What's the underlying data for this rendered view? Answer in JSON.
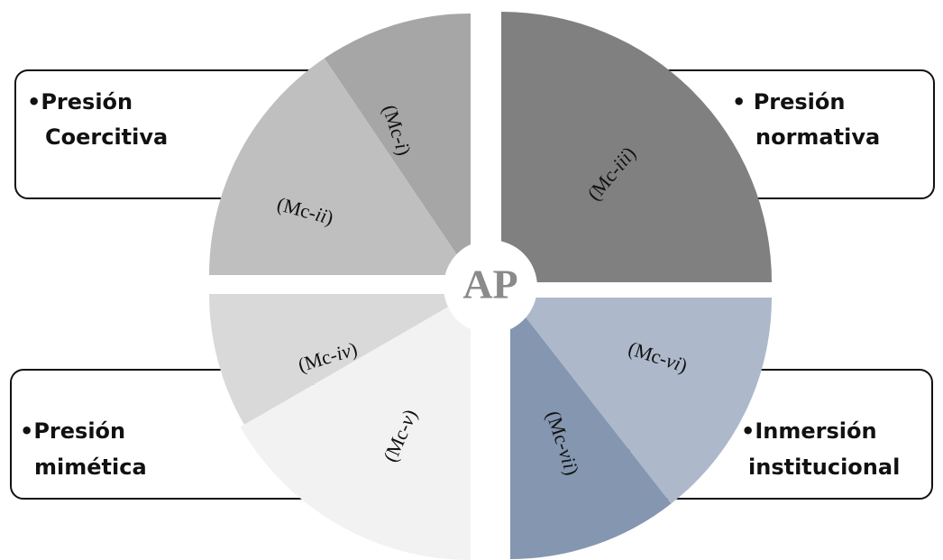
{
  "center_label": "AP",
  "boxes": [
    {
      "id": "coercitiva",
      "lines": [
        "•Presión",
        "Coercitiva"
      ]
    },
    {
      "id": "normativa",
      "lines": [
        "•  Presión",
        "normativa"
      ]
    },
    {
      "id": "mimetica",
      "lines": [
        "•Presión",
        "mimética"
      ]
    },
    {
      "id": "inmersion",
      "lines": [
        "•Inmersión",
        "institucional"
      ]
    }
  ],
  "segments": [
    {
      "id": "mc-i",
      "prefix": "(Mc-",
      "suffix": "i",
      "close": ")",
      "color": "#a6a6a6"
    },
    {
      "id": "mc-ii",
      "prefix": "(Mc-",
      "suffix": "ii",
      "close": ")",
      "color": "#bfbfbf"
    },
    {
      "id": "mc-iii",
      "prefix": "(Mc-",
      "suffix": "iii",
      "close": ")",
      "color": "#808080"
    },
    {
      "id": "mc-iv",
      "prefix": "(Mc-",
      "suffix": "iv",
      "close": ")",
      "color": "#d9d9d9"
    },
    {
      "id": "mc-v",
      "prefix": "(Mc-",
      "suffix": "v",
      "close": ")",
      "color": "#f2f2f2"
    },
    {
      "id": "mc-vi",
      "prefix": "(Mc-",
      "suffix": "vi",
      "close": ")",
      "color": "#adb9ca"
    },
    {
      "id": "mc-vii",
      "prefix": "(Mc-",
      "suffix": "vii",
      "close": ")",
      "color": "#8496b0"
    }
  ]
}
